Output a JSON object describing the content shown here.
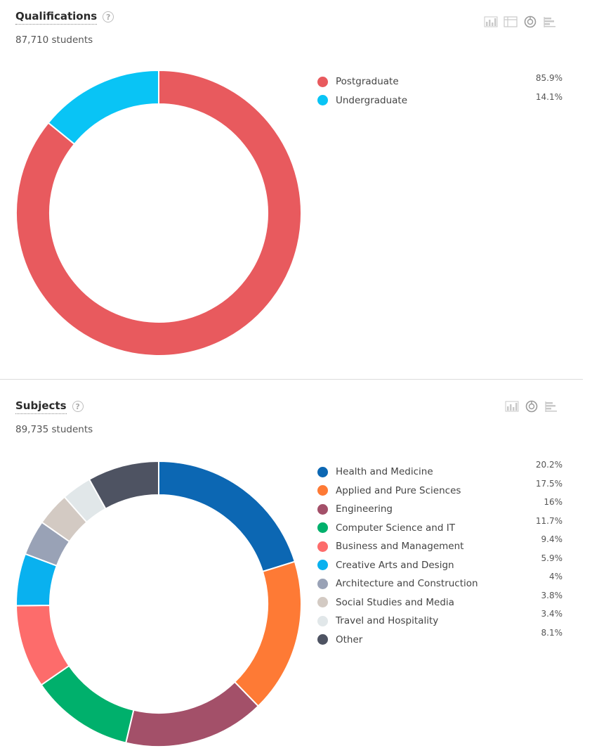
{
  "sections": {
    "qualifications": {
      "title": "Qualifications",
      "help_icon": "?",
      "count_label": "87,710 students",
      "toolbar_icons": [
        "bar-chart-icon",
        "table-icon",
        "donut-chart-icon",
        "horizontal-bar-icon"
      ]
    },
    "subjects": {
      "title": "Subjects",
      "help_icon": "?",
      "count_label": "89,735 students",
      "toolbar_icons": [
        "bar-chart-icon",
        "donut-chart-icon",
        "horizontal-bar-icon"
      ]
    }
  },
  "chart_data": [
    {
      "type": "pie",
      "variant": "donut",
      "title": "Qualifications",
      "categories": [
        "Postgraduate",
        "Undergraduate"
      ],
      "values": [
        85.9,
        14.1
      ],
      "labels": [
        "85.9%",
        "14.1%"
      ],
      "colors": [
        "#e85a5e",
        "#09c4f5"
      ],
      "legend_position": "right"
    },
    {
      "type": "pie",
      "variant": "donut",
      "title": "Subjects",
      "categories": [
        "Health and Medicine",
        "Applied and Pure Sciences",
        "Engineering",
        "Computer Science and IT",
        "Business and Management",
        "Creative Arts and Design",
        "Architecture and Construction",
        "Social Studies and Media",
        "Travel and Hospitality",
        "Other"
      ],
      "values": [
        20.2,
        17.5,
        16,
        11.7,
        9.4,
        5.9,
        4,
        3.8,
        3.4,
        8.1
      ],
      "labels": [
        "20.2%",
        "17.5%",
        "16%",
        "11.7%",
        "9.4%",
        "5.9%",
        "4%",
        "3.8%",
        "3.4%",
        "8.1%"
      ],
      "colors": [
        "#0c67b3",
        "#fe7a35",
        "#a35069",
        "#00b06c",
        "#fd6c6b",
        "#09b1ef",
        "#99a2b6",
        "#d3cac3",
        "#e1e7e9",
        "#4e5362"
      ],
      "legend_position": "right"
    }
  ]
}
